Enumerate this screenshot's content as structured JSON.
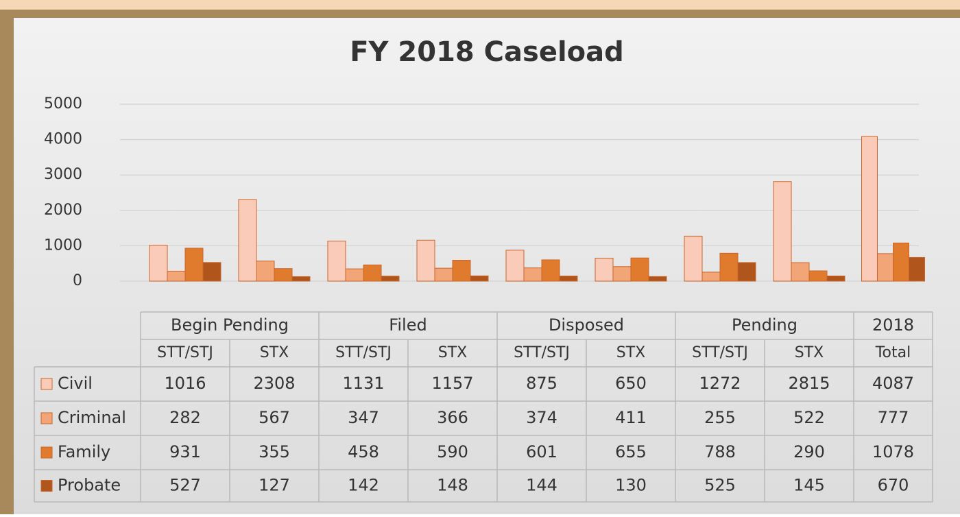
{
  "chart_data": {
    "type": "bar",
    "title": "FY 2018 Caseload",
    "category_groups": [
      {
        "name": "Begin Pending",
        "categories": [
          "STT/STJ",
          "STX"
        ]
      },
      {
        "name": "Filed",
        "categories": [
          "STT/STJ",
          "STX"
        ]
      },
      {
        "name": "Disposed",
        "categories": [
          "STT/STJ",
          "STX"
        ]
      },
      {
        "name": "Pending",
        "categories": [
          "STT/STJ",
          "STX"
        ]
      },
      {
        "name": "2018",
        "categories": [
          "Total"
        ]
      }
    ],
    "series": [
      {
        "name": "Civil",
        "color": "#f9cbb8",
        "values": [
          1016,
          2308,
          1131,
          1157,
          875,
          650,
          1272,
          2815,
          4087
        ]
      },
      {
        "name": "Criminal",
        "color": "#f2a577",
        "values": [
          282,
          567,
          347,
          366,
          374,
          411,
          255,
          522,
          777
        ]
      },
      {
        "name": "Family",
        "color": "#e07a2c",
        "values": [
          931,
          355,
          458,
          590,
          601,
          655,
          788,
          290,
          1078
        ]
      },
      {
        "name": "Probate",
        "color": "#b0561c",
        "values": [
          527,
          127,
          142,
          148,
          144,
          130,
          525,
          145,
          670
        ]
      }
    ],
    "ylim": [
      0,
      5000
    ],
    "yticks": [
      0,
      1000,
      2000,
      3000,
      4000,
      5000
    ],
    "grid": true
  }
}
